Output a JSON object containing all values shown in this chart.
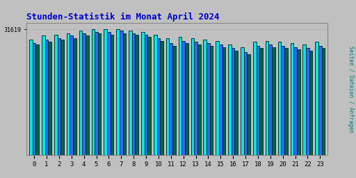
{
  "title": "Stunden-Statistik im Monat April 2024",
  "title_color": "#0000cc",
  "title_fontsize": 9,
  "ylabel_right": "Seiten / Dateien / Anfragen",
  "ylabel_right_color": "#008080",
  "ytick_label": "31619",
  "background_color": "#c0c0c0",
  "plot_bg_color": "#c0c0c0",
  "bar_color_1": "#00e8e8",
  "bar_color_2": "#3366ff",
  "bar_color_3": "#006644",
  "bar_edge_color": "#003333",
  "categories": [
    0,
    1,
    2,
    3,
    4,
    5,
    6,
    7,
    8,
    9,
    10,
    11,
    12,
    13,
    14,
    15,
    16,
    17,
    18,
    19,
    20,
    21,
    22,
    23
  ],
  "values_1": [
    92,
    95,
    96,
    97,
    99,
    100,
    100,
    100,
    99,
    98,
    96,
    93,
    94,
    93,
    92,
    91,
    88,
    86,
    90,
    91,
    90,
    89,
    88,
    90
  ],
  "values_2": [
    89,
    92,
    93,
    95,
    97,
    98,
    98,
    99,
    97,
    96,
    93,
    89,
    91,
    90,
    89,
    88,
    85,
    82,
    87,
    88,
    87,
    86,
    85,
    87
  ],
  "values_3": [
    88,
    90,
    92,
    93,
    95,
    97,
    96,
    97,
    96,
    94,
    91,
    87,
    89,
    88,
    87,
    86,
    83,
    80,
    85,
    86,
    85,
    84,
    83,
    85
  ],
  "ymax": 105,
  "ymin": 0,
  "font_family": "monospace"
}
